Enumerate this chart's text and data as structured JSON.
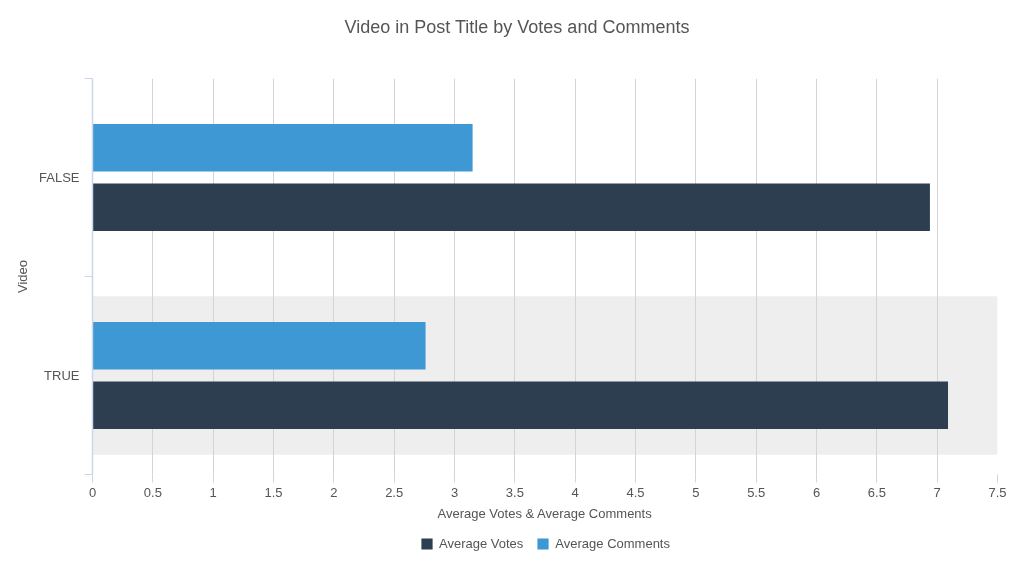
{
  "chart_data": {
    "type": "bar",
    "orientation": "horizontal",
    "title": "Video in Post Title by Votes and Comments",
    "xlabel": "Average Votes & Average Comments",
    "ylabel": "Video",
    "categories": [
      "FALSE",
      "TRUE"
    ],
    "series": [
      {
        "name": "Average Votes",
        "color": "#2d3e50",
        "values": [
          6.94,
          7.09
        ]
      },
      {
        "name": "Average Comments",
        "color": "#3d98d3",
        "values": [
          3.15,
          2.76
        ]
      }
    ],
    "xlim": [
      0,
      7.5
    ],
    "xticks": [
      0,
      0.5,
      1,
      1.5,
      2,
      2.5,
      3,
      3.5,
      4,
      4.5,
      5,
      5.5,
      6,
      6.5,
      7,
      7.5
    ],
    "grid": "x",
    "legend": "bottom",
    "bands": [
      {
        "axis": "y",
        "from": "TRUE",
        "to": "TRUE",
        "color": "#eeeeee"
      }
    ]
  }
}
